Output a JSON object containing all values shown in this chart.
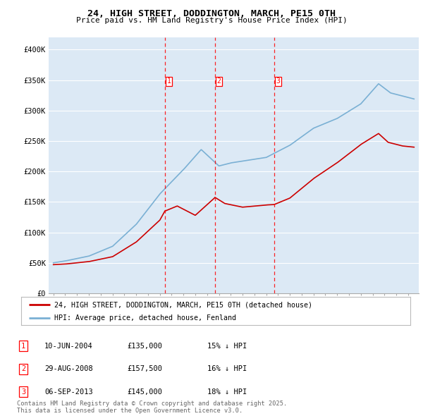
{
  "title": "24, HIGH STREET, DODDINGTON, MARCH, PE15 0TH",
  "subtitle": "Price paid vs. HM Land Registry's House Price Index (HPI)",
  "plot_bg_color": "#dce9f5",
  "ylim": [
    0,
    420000
  ],
  "yticks": [
    0,
    50000,
    100000,
    150000,
    200000,
    250000,
    300000,
    350000,
    400000
  ],
  "ytick_labels": [
    "£0",
    "£50K",
    "£100K",
    "£150K",
    "£200K",
    "£250K",
    "£300K",
    "£350K",
    "£400K"
  ],
  "legend_line1": "24, HIGH STREET, DODDINGTON, MARCH, PE15 0TH (detached house)",
  "legend_line2": "HPI: Average price, detached house, Fenland",
  "red_color": "#cc0000",
  "blue_color": "#7ab0d4",
  "sale_markers": [
    {
      "label": "1",
      "date_x": 2004.44
    },
    {
      "label": "2",
      "date_x": 2008.66
    },
    {
      "label": "3",
      "date_x": 2013.67
    }
  ],
  "table_rows": [
    {
      "num": "1",
      "date": "10-JUN-2004",
      "price": "£135,000",
      "pct": "15% ↓ HPI"
    },
    {
      "num": "2",
      "date": "29-AUG-2008",
      "price": "£157,500",
      "pct": "16% ↓ HPI"
    },
    {
      "num": "3",
      "date": "06-SEP-2013",
      "price": "£145,000",
      "pct": "18% ↓ HPI"
    }
  ],
  "footer": "Contains HM Land Registry data © Crown copyright and database right 2025.\nThis data is licensed under the Open Government Licence v3.0.",
  "xlim_left": 1994.6,
  "xlim_right": 2025.9
}
